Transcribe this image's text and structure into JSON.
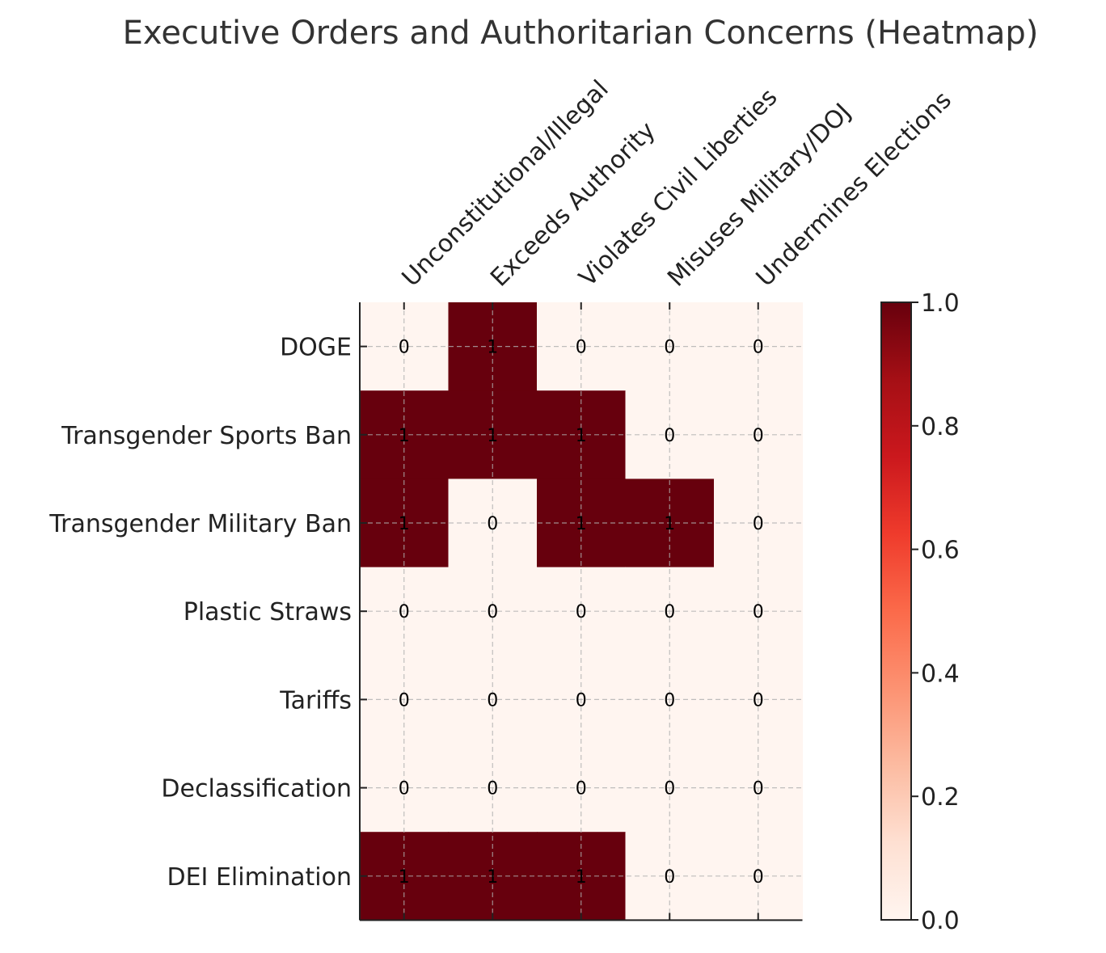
{
  "chart_data": {
    "type": "heatmap",
    "title": "Executive Orders and Authoritarian Concerns (Heatmap)",
    "rows": [
      "DOGE",
      "Transgender Sports Ban",
      "Transgender Military Ban",
      "Plastic Straws",
      "Tariffs",
      "Declassification",
      "DEI Elimination"
    ],
    "columns": [
      "Unconstitutional/Illegal",
      "Exceeds Authority",
      "Violates Civil Liberties",
      "Misuses Military/DOJ",
      "Undermines Elections"
    ],
    "values": [
      [
        0,
        1,
        0,
        0,
        0
      ],
      [
        1,
        1,
        1,
        0,
        0
      ],
      [
        1,
        0,
        1,
        1,
        0
      ],
      [
        0,
        0,
        0,
        0,
        0
      ],
      [
        0,
        0,
        0,
        0,
        0
      ],
      [
        0,
        0,
        0,
        0,
        0
      ],
      [
        1,
        1,
        1,
        0,
        0
      ]
    ],
    "colormap": {
      "name": "Reds",
      "low_color": "#fff5f0",
      "high_color": "#67000d"
    },
    "grid": true,
    "colorbar": {
      "range": [
        0.0,
        1.0
      ],
      "ticks": [
        "0.0",
        "0.2",
        "0.4",
        "0.6",
        "0.8",
        "1.0"
      ]
    }
  }
}
